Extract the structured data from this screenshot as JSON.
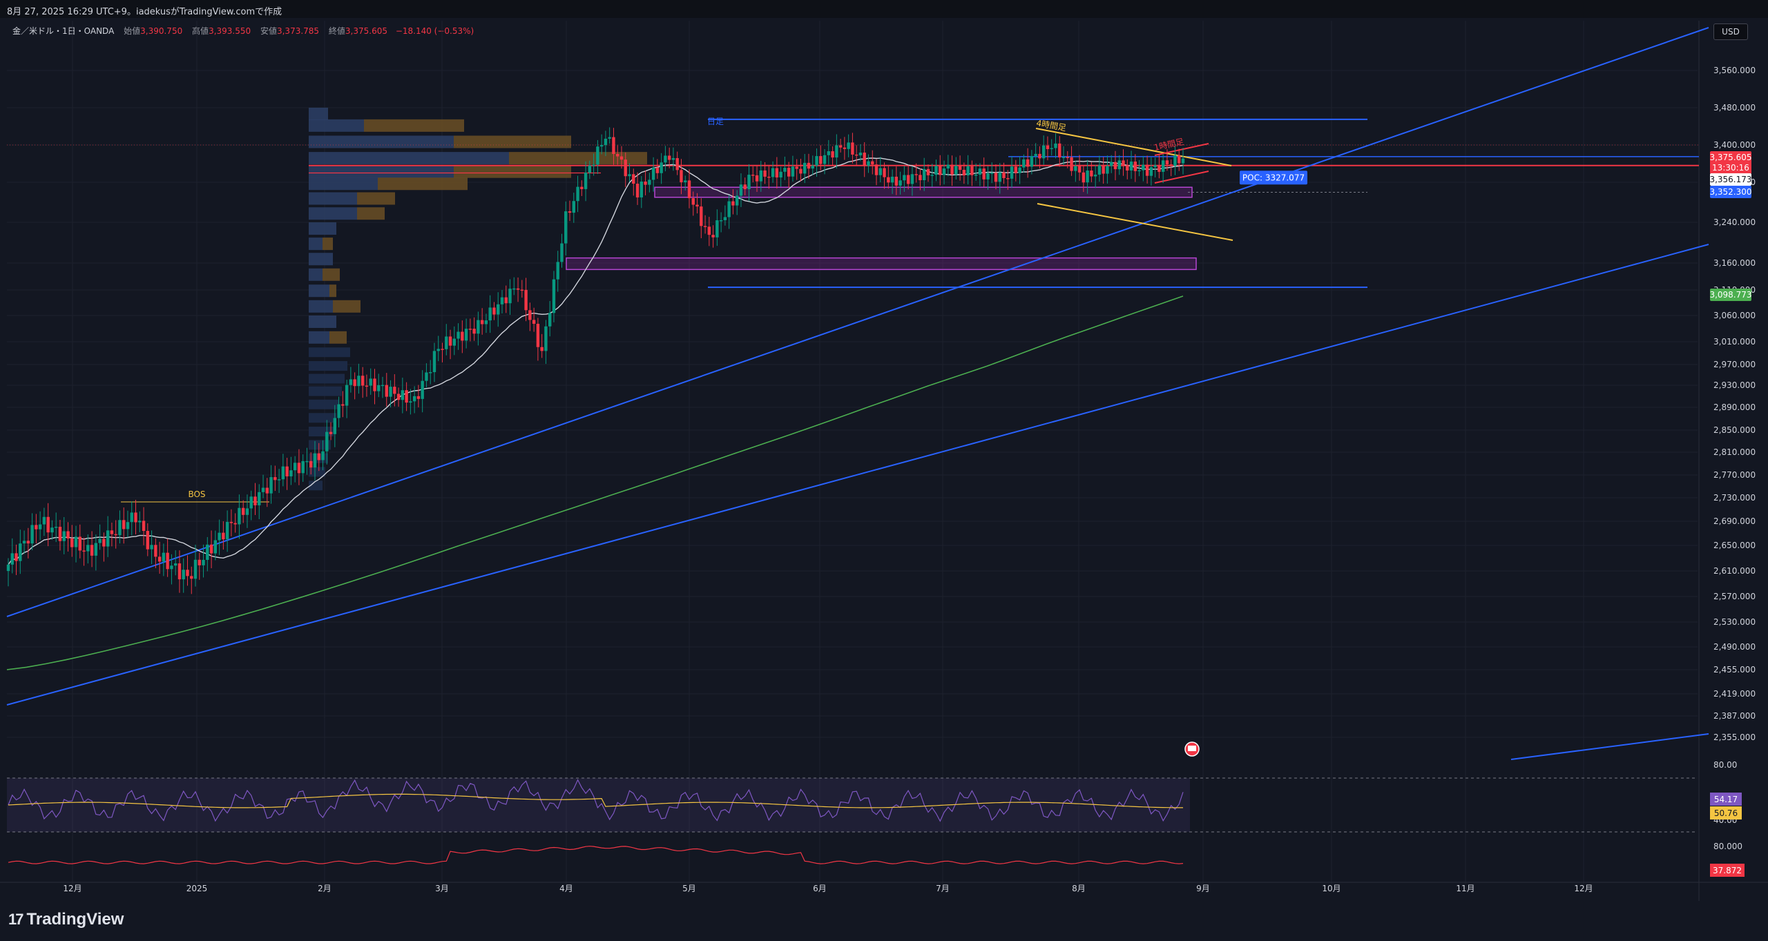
{
  "header": {
    "watermark": "8月 27, 2025 16:29 UTC+9。iadekusがTradingView.comで作成",
    "symbol": "金／米ドル・1日・OANDA",
    "ohlc": [
      {
        "label": "始値",
        "value": "3,390.750"
      },
      {
        "label": "高値",
        "value": "3,393.550"
      },
      {
        "label": "安値",
        "value": "3,373.785"
      },
      {
        "label": "終値",
        "value": "3,375.605"
      }
    ],
    "change": "−18.140 (−0.53%)",
    "currency": "USD"
  },
  "chart_data": {
    "type": "candlestick",
    "price_axis": {
      "ticks": [
        "3,560.000",
        "3,480.000",
        "3,400.000",
        "3,320.000",
        "3,240.000",
        "3,160.000",
        "3,110.000",
        "3,060.000",
        "3,010.000",
        "2,970.000",
        "2,930.000",
        "2,890.000",
        "2,850.000",
        "2,810.000",
        "2,770.000",
        "2,730.000",
        "2,690.000",
        "2,650.000",
        "2,610.000",
        "2,570.000",
        "2,530.000",
        "2,490.000",
        "2,455.000",
        "2,419.000",
        "2,387.000",
        "2,355.000"
      ],
      "ylim": [
        2355,
        3560
      ]
    },
    "time_axis": {
      "ticks": [
        "12月",
        "2025",
        "2月",
        "3月",
        "4月",
        "5月",
        "6月",
        "7月",
        "8月",
        "9月",
        "10月",
        "11月",
        "12月"
      ]
    },
    "price_labels": [
      {
        "text": "3,375.605",
        "price": 3375.6,
        "bg": "#f23645",
        "fg": "#ffffff"
      },
      {
        "text": "13:30:16",
        "price": 3362,
        "bg": "#f23645",
        "fg": "#ffffff"
      },
      {
        "text": "3,356.173",
        "price": 3356.2,
        "bg": "#ffffff",
        "fg": "#131722"
      },
      {
        "text": "3,352.300",
        "price": 3331,
        "bg": "#2962ff",
        "fg": "#ffffff"
      },
      {
        "text": "3,098.773",
        "price": 3098.8,
        "bg": "#4caf50",
        "fg": "#ffffff"
      }
    ],
    "annotations": {
      "bos": "BOS",
      "daily": "日足",
      "h4": "4時間足",
      "h1": "1時間足",
      "poc": "POC: 3327.077"
    },
    "horizontal_levels": [
      3455,
      3356,
      3352,
      3115
    ],
    "zones": [
      {
        "from": 3290,
        "to": 3310,
        "color": "#9c27b0"
      },
      {
        "from": 3148,
        "to": 3170,
        "color": "#9c27b0"
      }
    ],
    "rsi": {
      "ticks": [
        "80.00",
        "40.00"
      ],
      "value_label": "54.17",
      "ma_label": "50.76",
      "value_color": "#7e57c2",
      "ma_color": "#f5c542"
    },
    "indicator2": {
      "ticks": [
        "80.000"
      ],
      "value_label": "37.872",
      "color": "#f23645"
    }
  },
  "footer": {
    "logo_text": "TradingView"
  }
}
